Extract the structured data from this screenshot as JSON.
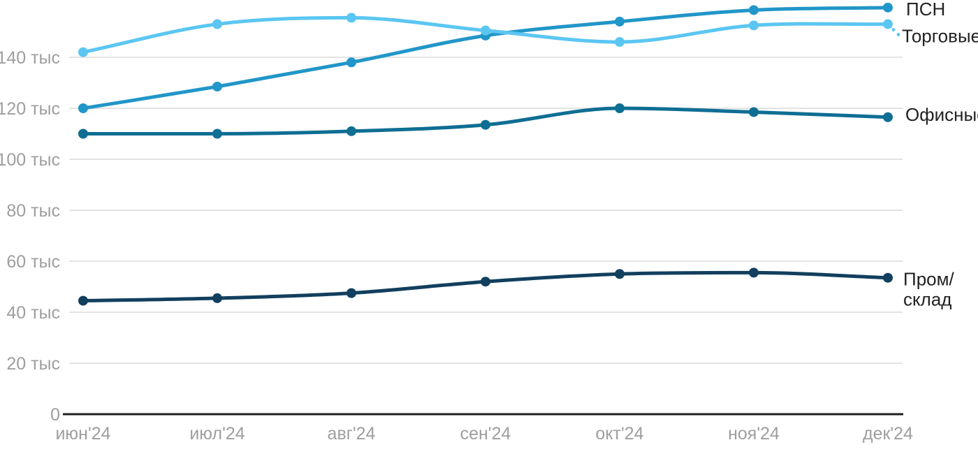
{
  "chart_data": {
    "type": "line",
    "title": "",
    "xlabel": "",
    "ylabel": "",
    "unit": "тыс",
    "grid": "horizontal",
    "legend_position": "right-of-line-end",
    "ylim": [
      0,
      162
    ],
    "categories": [
      "июн'24",
      "июл'24",
      "авг'24",
      "сен'24",
      "окт'24",
      "ноя'24",
      "дек'24"
    ],
    "yticks": [
      {
        "value": 0,
        "label": "0"
      },
      {
        "value": 20,
        "label": "20 тыс"
      },
      {
        "value": 40,
        "label": "40 тыс"
      },
      {
        "value": 60,
        "label": "60 тыс"
      },
      {
        "value": 80,
        "label": "80 тыс"
      },
      {
        "value": 100,
        "label": "100 тыс"
      },
      {
        "value": 120,
        "label": "120 тыс"
      },
      {
        "value": 140,
        "label": "140 тыс"
      }
    ],
    "series": [
      {
        "name": "ПСН",
        "label_lines": [
          "ПСН"
        ],
        "color": "#2196C8",
        "values": [
          120,
          128.5,
          138,
          148.5,
          154,
          158.5,
          159.5
        ]
      },
      {
        "name": "Торговые",
        "label_lines": [
          "Торговые"
        ],
        "color": "#5BC6F2",
        "values": [
          142,
          153,
          155.5,
          150.5,
          146,
          152.5,
          153
        ],
        "label_leader_dots": true
      },
      {
        "name": "Офисные",
        "label_lines": [
          "Офисные"
        ],
        "color": "#0E6E93",
        "values": [
          110,
          110,
          111,
          113.5,
          120,
          118.5,
          116.5
        ]
      },
      {
        "name": "Пром/склад",
        "label_lines": [
          "Пром/",
          "склад"
        ],
        "color": "#123F5E",
        "values": [
          44.5,
          45.5,
          47.5,
          52,
          55,
          55.5,
          53.5
        ]
      }
    ]
  },
  "colors": {
    "background": "#ffffff",
    "grid": "#e3e3e3",
    "axis": "#1f1f1f",
    "tick_text": "#9e9e9e",
    "legend_text": "#222222"
  }
}
